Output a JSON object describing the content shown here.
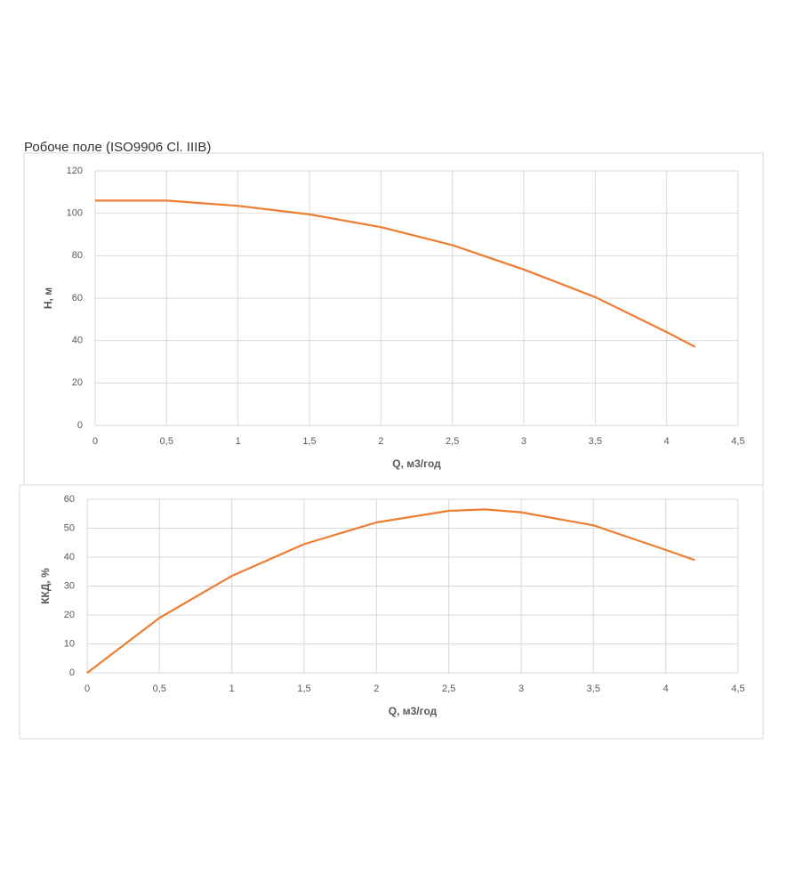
{
  "chart_data": [
    {
      "type": "line",
      "title": "Робоче поле (ISO9906 Cl. IIIB)",
      "x_label": "Q, м3/год",
      "y_label": "H, м",
      "x": [
        0,
        0.5,
        1,
        1.5,
        2,
        2.5,
        3,
        3.5,
        4,
        4.2
      ],
      "values": [
        106,
        106,
        103.5,
        99.5,
        93.5,
        85,
        73.5,
        60.5,
        44,
        37
      ],
      "color": "#ed7d31",
      "xlim": [
        0,
        4.5
      ],
      "xticks": [
        0,
        {
          "value": 0.5,
          "label": "0,5"
        },
        1,
        {
          "value": 1.5,
          "label": "1,5"
        },
        2,
        {
          "value": 2.5,
          "label": "2,5"
        },
        3,
        {
          "value": 3.5,
          "label": "3,5"
        },
        4,
        {
          "value": 4.5,
          "label": "4,5"
        }
      ],
      "ylim": [
        0,
        120
      ],
      "yticks": [
        0,
        20,
        40,
        60,
        80,
        100,
        120
      ],
      "grid": true
    },
    {
      "type": "line",
      "x_label": "Q, м3/год",
      "y_label": "ККД, %",
      "x": [
        0,
        0.5,
        1,
        1.5,
        2,
        2.5,
        2.75,
        3,
        3.5,
        4,
        4.2
      ],
      "values": [
        0,
        19,
        33.5,
        44.5,
        52,
        56,
        56.5,
        55.5,
        51,
        42.5,
        39
      ],
      "color": "#ed7d31",
      "xlim": [
        0,
        4.5
      ],
      "xticks": [
        0,
        {
          "value": 0.5,
          "label": "0,5"
        },
        1,
        {
          "value": 1.5,
          "label": "1,5"
        },
        2,
        {
          "value": 2.5,
          "label": "2,5"
        },
        3,
        {
          "value": 3.5,
          "label": "3,5"
        },
        4,
        {
          "value": 4.5,
          "label": "4,5"
        }
      ],
      "ylim": [
        0,
        60
      ],
      "yticks": [
        0,
        10,
        20,
        30,
        40,
        50,
        60
      ],
      "grid": true
    }
  ]
}
